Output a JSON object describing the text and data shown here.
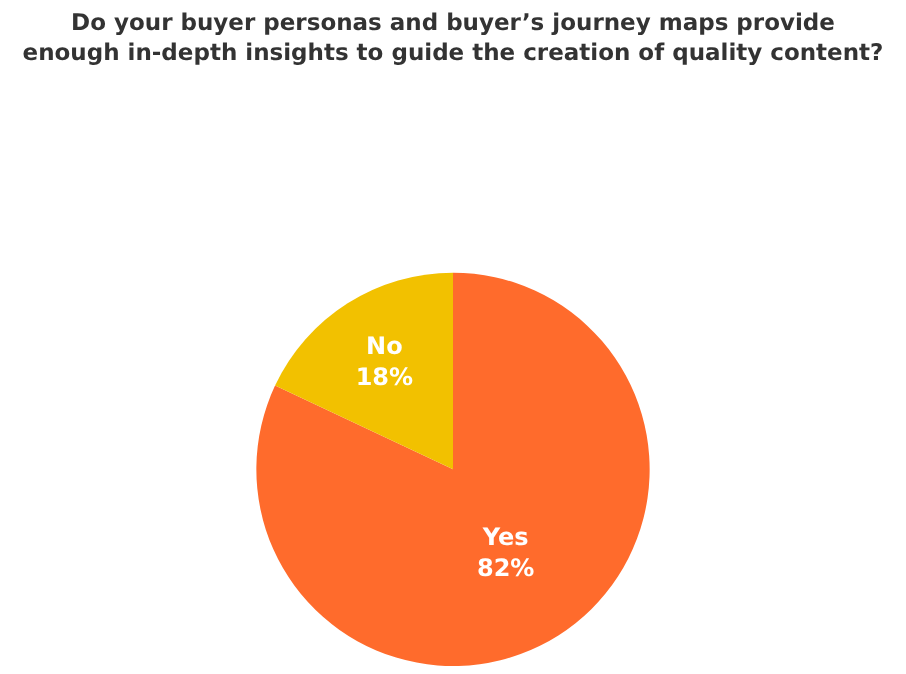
{
  "chart_data": {
    "type": "pie",
    "title": "Do your buyer personas and buyer’s journey maps provide\nenough in-depth insights to guide the creation of quality content?",
    "categories": [
      "Yes",
      "No"
    ],
    "values": [
      82,
      18
    ],
    "value_labels": [
      "82%",
      "18%"
    ],
    "colors": [
      "#ff6b2c",
      "#f2c100"
    ],
    "legend": false
  }
}
